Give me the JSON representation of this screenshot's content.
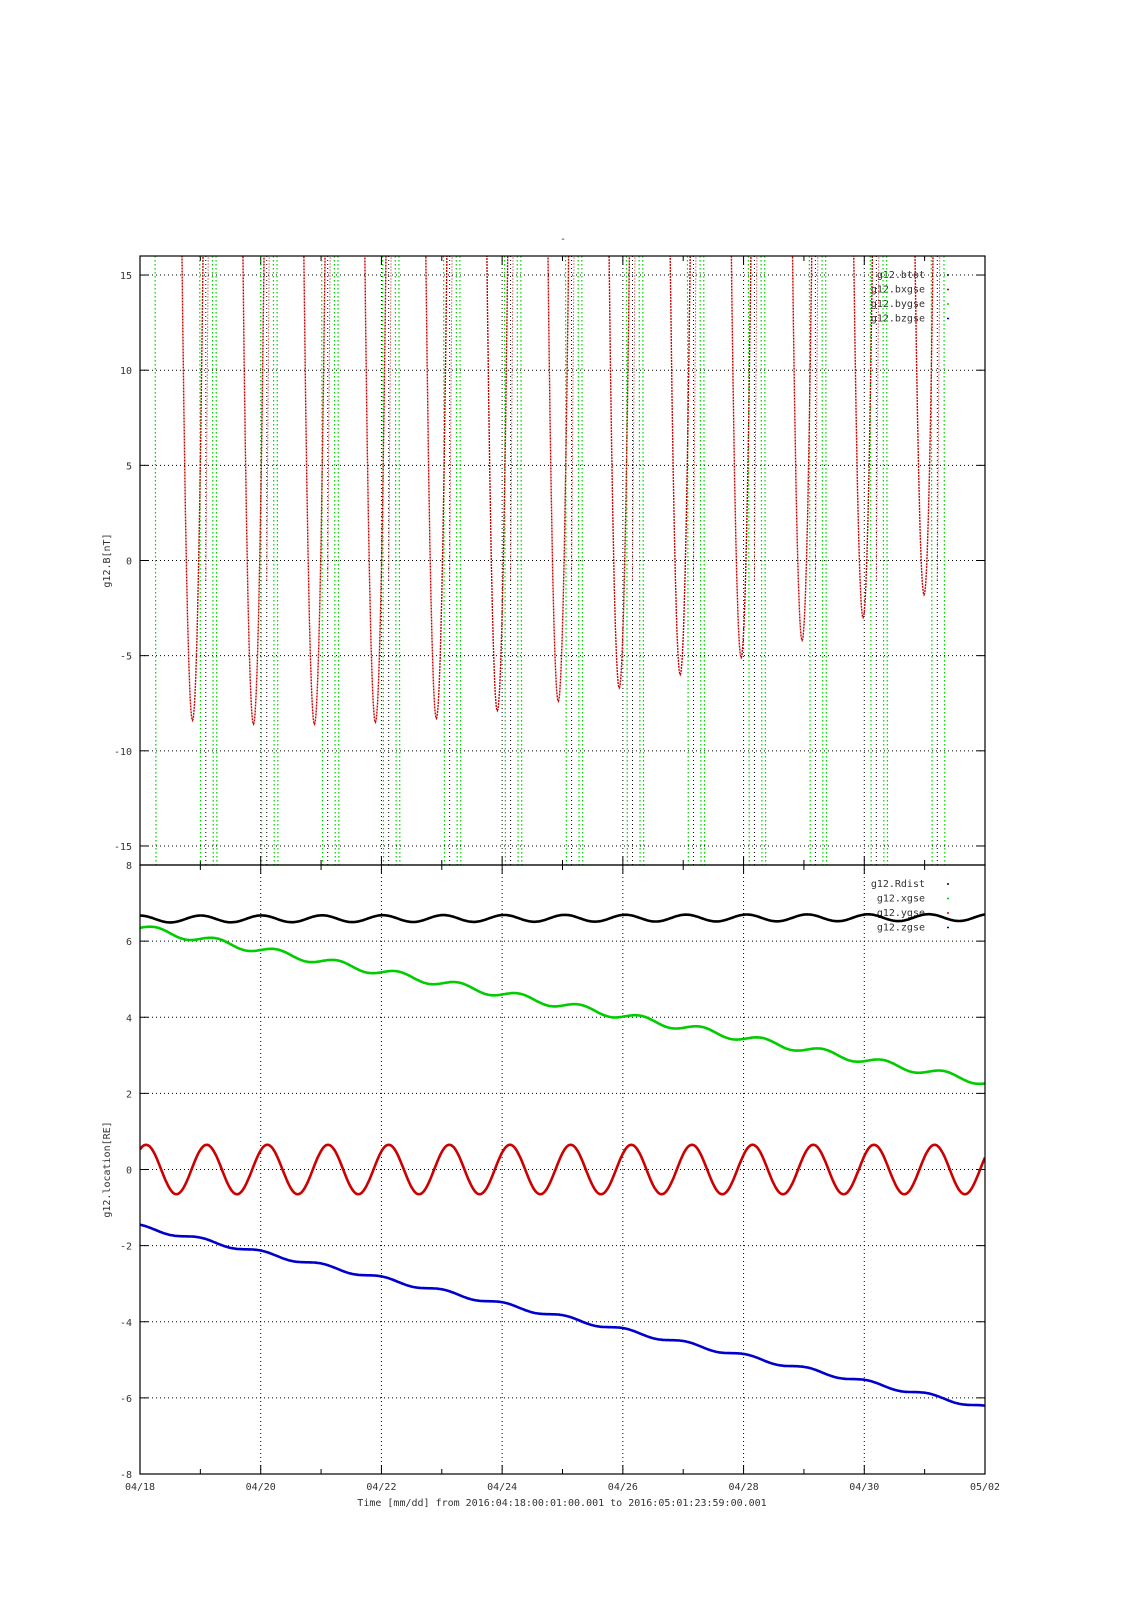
{
  "figure": {
    "title": "-",
    "time_axis_label": "Time [mm/dd]  from 2016:04:18:00:01:00.001  to  2016:05:01:23:59:00.001",
    "x_tick_labels": [
      "04/18",
      "04/20",
      "04/22",
      "04/24",
      "04/26",
      "04/28",
      "04/30",
      "05/02"
    ]
  },
  "chart_data": [
    {
      "type": "line",
      "ylabel": "g12.B[nT]",
      "xlim_days": [
        0,
        14
      ],
      "ylim": [
        -16,
        16
      ],
      "yticks": [
        -15,
        -10,
        -5,
        0,
        5,
        10,
        15
      ],
      "y_tick_labels": [
        "-15",
        "-10",
        "-5",
        "0",
        "5",
        "10",
        "15"
      ],
      "grid": true,
      "legend_position": "top-right",
      "series": [
        {
          "name": "g12.btot",
          "color": "#000000"
        },
        {
          "name": "g12.bxgse",
          "color": "#cc0000"
        },
        {
          "name": "g12.bygse",
          "color": "#00cc00"
        },
        {
          "name": "g12.bzgse",
          "color": "#0000cc"
        }
      ],
      "bxgse_minima": {
        "x": [
          0.87,
          1.88,
          2.89,
          3.9,
          4.91,
          5.92,
          6.93,
          7.94,
          8.95,
          9.96,
          10.97,
          11.98,
          12.99
        ],
        "y": [
          -8.4,
          -8.6,
          -8.6,
          -8.5,
          -8.3,
          -7.9,
          -7.4,
          -6.7,
          -6.0,
          -5.1,
          -4.2,
          -3.0,
          -1.8
        ]
      }
    },
    {
      "type": "line",
      "ylabel": "g12.location[RE]",
      "xlim_days": [
        0,
        14
      ],
      "ylim": [
        -8,
        8
      ],
      "yticks": [
        -8,
        -6,
        -4,
        -2,
        0,
        2,
        4,
        6,
        8
      ],
      "y_tick_labels": [
        "-8",
        "-6",
        "-4",
        "-2",
        "0",
        "2",
        "4",
        "6",
        "8"
      ],
      "grid": true,
      "legend_position": "top-right",
      "series": [
        {
          "name": "g12.Rdist",
          "color": "#000000",
          "trend": {
            "x": [
              0,
              14
            ],
            "y": [
              6.58,
              6.62
            ]
          },
          "oscillation_amplitude": 0.09
        },
        {
          "name": "g12.xgse",
          "color": "#00cc00",
          "trend": {
            "x": [
              0,
              14
            ],
            "y": [
              6.35,
              2.3
            ]
          },
          "oscillation_amplitude": 0.09
        },
        {
          "name": "g12.ygse",
          "color": "#cc0000",
          "trend": {
            "x": [
              0,
              14
            ],
            "y": [
              0.0,
              0.0
            ]
          },
          "oscillation_amplitude": 0.65
        },
        {
          "name": "g12.zgse",
          "color": "#0000cc",
          "trend": {
            "x": [
              0,
              14
            ],
            "y": [
              -1.5,
              -6.25
            ]
          },
          "oscillation_amplitude": 0.05
        }
      ]
    }
  ]
}
